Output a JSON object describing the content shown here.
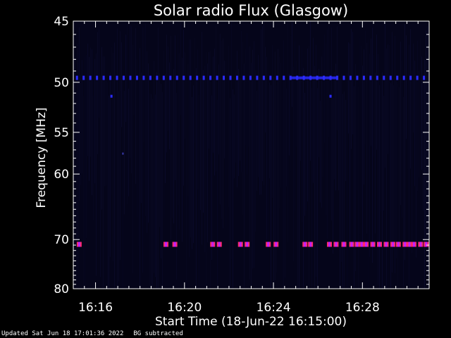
{
  "footer": {
    "updated": "Updated Sat Jun 18 17:01:36 2022",
    "note": "BG subtracted"
  },
  "chart_data": {
    "type": "heatmap",
    "title": "Solar radio Flux (Glasgow)",
    "xlabel": "Start Time (18-Jun-22 16:15:00)",
    "ylabel": "Frequency [MHz]",
    "x_start": "16:15:00",
    "x_end": "16:31:00",
    "xlim_minutes": [
      0,
      16
    ],
    "x_ticks": [
      {
        "minute": 1,
        "label": "16:16"
      },
      {
        "minute": 5,
        "label": "16:20"
      },
      {
        "minute": 9,
        "label": "16:24"
      },
      {
        "minute": 13,
        "label": "16:28"
      }
    ],
    "ylim": [
      45,
      80
    ],
    "y_ticks": [
      45,
      50,
      55,
      60,
      70,
      80
    ],
    "y_scale": "reciprocal",
    "colors": {
      "background": "#05051a",
      "band": "#2b2bff",
      "burst": "#ff2b6a",
      "burst_core": "#c020ff"
    },
    "features": {
      "band_49_6MHz": {
        "frequency_mhz": 49.6,
        "pulse_minutes": [
          0.15,
          0.45,
          0.75,
          1.05,
          1.35,
          1.65,
          1.95,
          2.25,
          2.55,
          2.85,
          3.15,
          3.45,
          3.75,
          4.05,
          4.35,
          4.65,
          4.95,
          5.25,
          5.55,
          5.85,
          6.15,
          6.45,
          6.75,
          7.05,
          7.35,
          7.65,
          7.95,
          8.25,
          8.55,
          8.85,
          9.15,
          9.45,
          9.75,
          10.05,
          10.35,
          10.65,
          10.95,
          11.25,
          11.55,
          11.85,
          12.15,
          12.45,
          12.75,
          13.05,
          13.35,
          13.65,
          13.95,
          14.25,
          14.55,
          14.85,
          15.15,
          15.45,
          15.75
        ],
        "continuous_minutes": [
          9.75,
          11.85
        ]
      },
      "spots_51_3MHz_minutes": [
        1.7,
        11.55
      ],
      "spot_57_4MHz_minutes": [
        2.2
      ],
      "bursts_70_8MHz_minutes": [
        0.25,
        4.15,
        4.55,
        6.25,
        6.55,
        7.5,
        7.8,
        8.75,
        9.1,
        10.4,
        10.65,
        11.5,
        11.8,
        12.15,
        12.5,
        12.75,
        12.95,
        13.15,
        13.45,
        13.75,
        14.05,
        14.35,
        14.6,
        14.9,
        15.1,
        15.3,
        15.6,
        15.85
      ]
    }
  }
}
